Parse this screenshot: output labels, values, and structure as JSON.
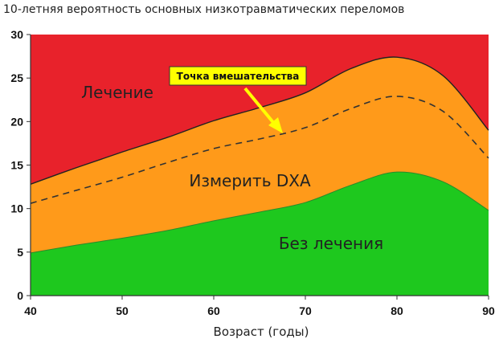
{
  "chart_data": {
    "type": "area",
    "title": "10-летняя вероятность основных низкотравматических переломов",
    "xlabel": "Возраст (годы)",
    "ylabel": "",
    "xlim": [
      40,
      90
    ],
    "ylim": [
      0,
      30
    ],
    "x_ticks": [
      40,
      50,
      60,
      70,
      80,
      90
    ],
    "y_ticks": [
      0,
      5,
      10,
      15,
      20,
      25,
      30
    ],
    "x": [
      40,
      45,
      50,
      55,
      60,
      65,
      70,
      75,
      80,
      85,
      90
    ],
    "series": [
      {
        "name": "Без лечения",
        "values": [
          4.9,
          5.8,
          6.6,
          7.5,
          8.6,
          9.6,
          10.7,
          12.7,
          14.2,
          13.1,
          9.8
        ],
        "color": "#1ec81e"
      },
      {
        "name": "Измерить DXA",
        "values": [
          12.8,
          14.7,
          16.5,
          18.2,
          20.1,
          21.6,
          23.3,
          26.1,
          27.4,
          25.3,
          19.0
        ],
        "color": "#ff9a1a"
      },
      {
        "name": "Лечение",
        "values": [
          30,
          30,
          30,
          30,
          30,
          30,
          30,
          30,
          30,
          30,
          30
        ],
        "color": "#e8222b"
      }
    ],
    "threshold": {
      "name": "Точка вмешательства",
      "values": [
        10.6,
        12.1,
        13.6,
        15.3,
        16.9,
        18.0,
        19.3,
        21.5,
        22.9,
        21.2,
        15.8
      ]
    },
    "grid": false
  }
}
